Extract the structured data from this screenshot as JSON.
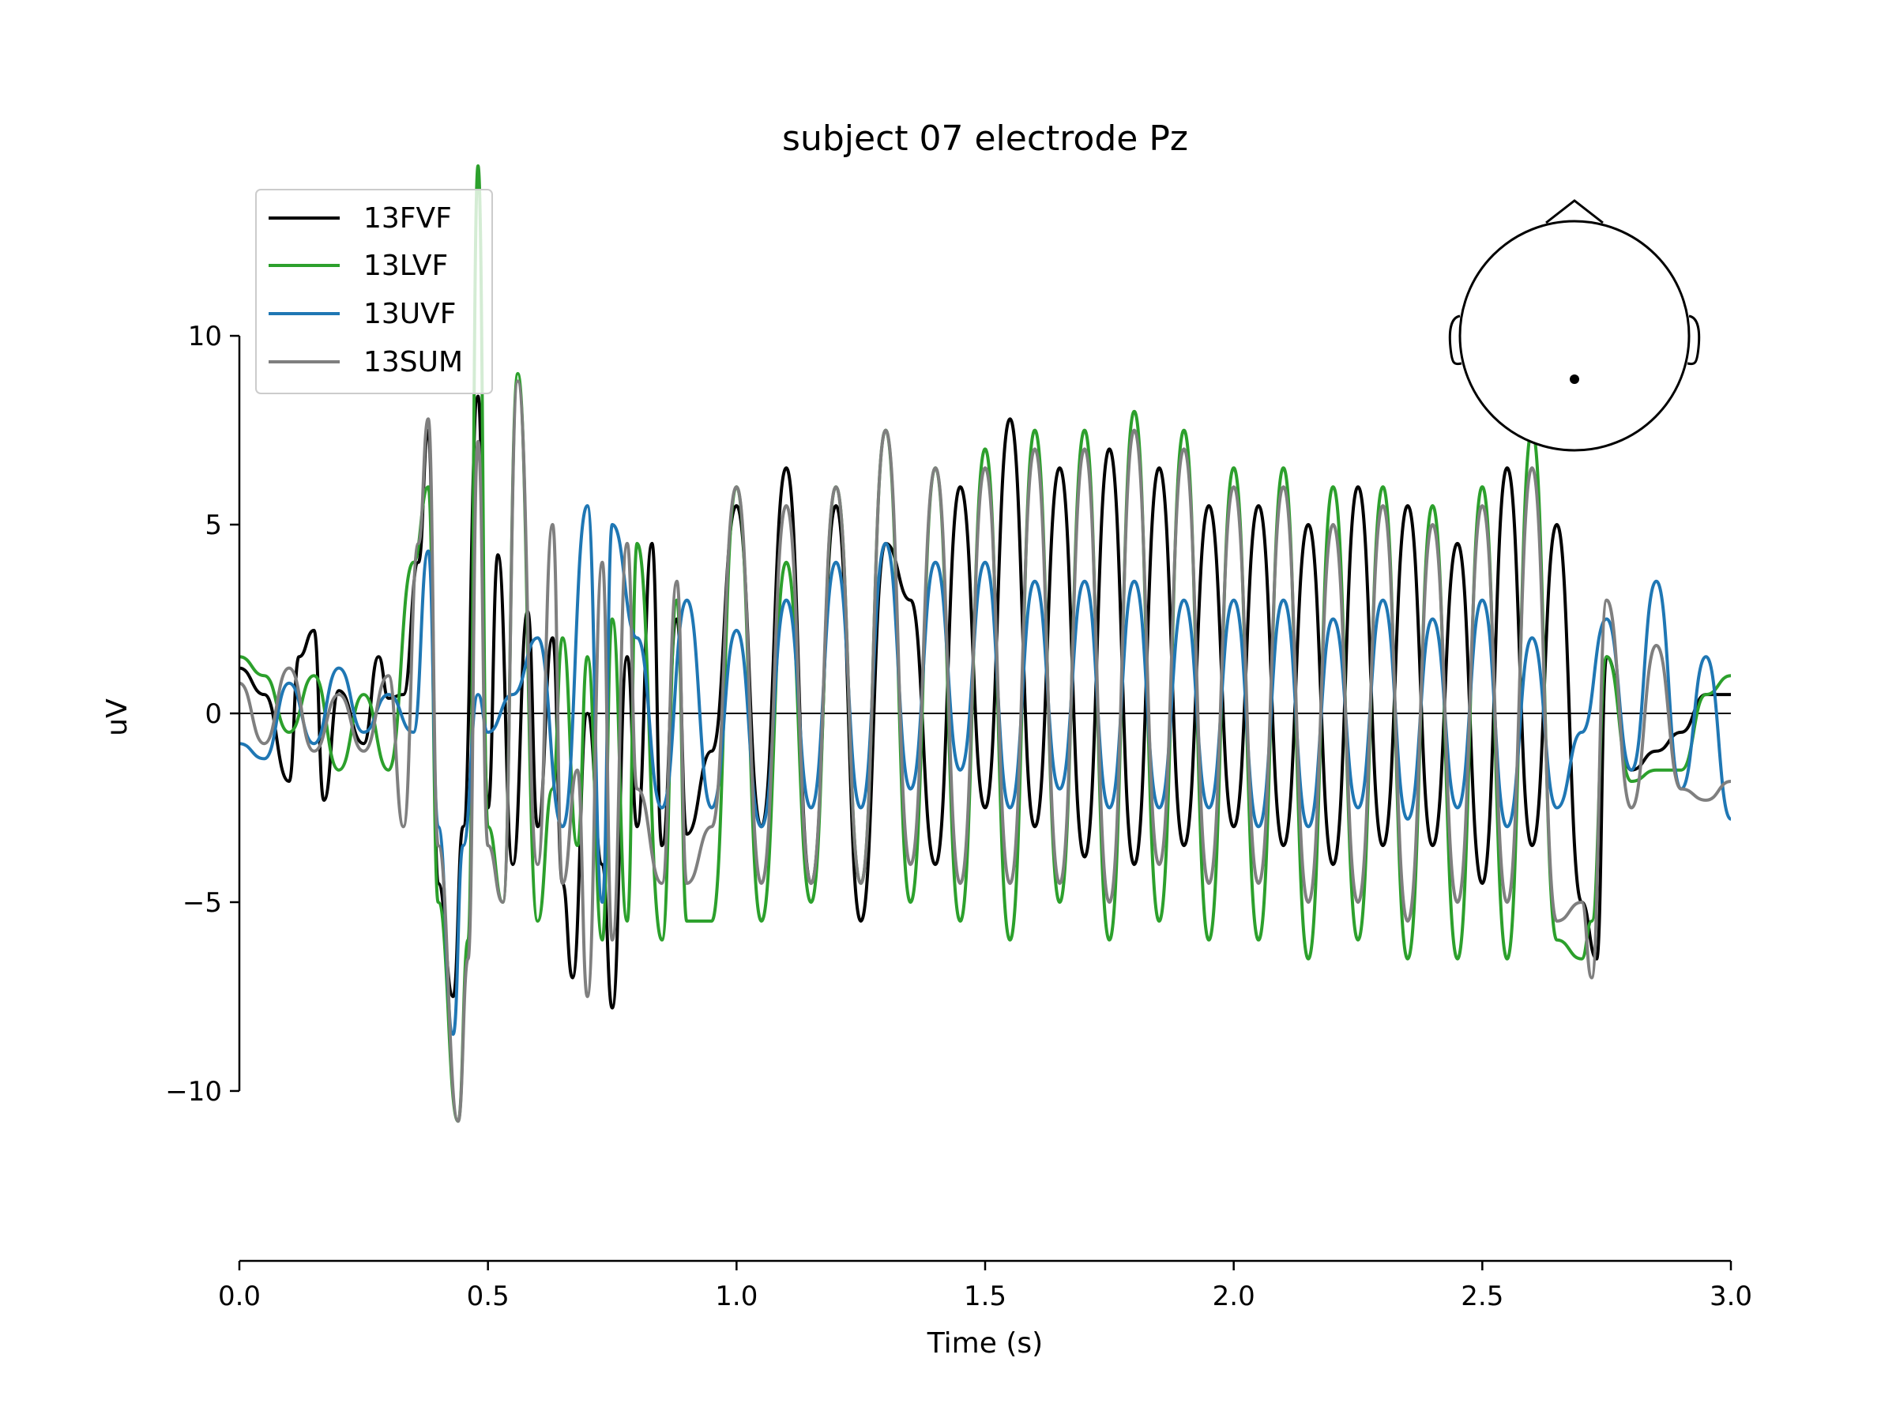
{
  "chart_data": {
    "type": "line",
    "title": "subject 07 electrode Pz",
    "xlabel": "Time (s)",
    "ylabel": "uV",
    "xlim": [
      0,
      3.0
    ],
    "ylim": [
      -14.5,
      14.5
    ],
    "x_ticks": [
      0.0,
      0.5,
      1.0,
      1.5,
      2.0,
      2.5,
      3.0
    ],
    "x_tick_labels": [
      "0.0",
      "0.5",
      "1.0",
      "1.5",
      "2.0",
      "2.5",
      "3.0"
    ],
    "y_ticks": [
      10,
      5,
      0,
      -5,
      -10
    ],
    "y_tick_labels": [
      "10",
      "5",
      "0",
      "−5",
      "−10"
    ],
    "grid": false,
    "zero_line": true,
    "legend_position": "top-left",
    "sensor_inset": {
      "position": "top-right",
      "electrode": "Pz"
    },
    "series": [
      {
        "name": "13FVF",
        "color": "#000000",
        "x": [
          0.0,
          0.05,
          0.1,
          0.12,
          0.15,
          0.17,
          0.2,
          0.25,
          0.28,
          0.3,
          0.33,
          0.36,
          0.38,
          0.4,
          0.43,
          0.45,
          0.48,
          0.5,
          0.52,
          0.55,
          0.58,
          0.6,
          0.63,
          0.65,
          0.67,
          0.7,
          0.73,
          0.75,
          0.78,
          0.8,
          0.83,
          0.85,
          0.88,
          0.9,
          0.95,
          1.0,
          1.05,
          1.1,
          1.15,
          1.2,
          1.25,
          1.3,
          1.35,
          1.4,
          1.45,
          1.5,
          1.55,
          1.6,
          1.65,
          1.7,
          1.75,
          1.8,
          1.85,
          1.9,
          1.95,
          2.0,
          2.05,
          2.1,
          2.15,
          2.2,
          2.25,
          2.3,
          2.35,
          2.4,
          2.45,
          2.5,
          2.55,
          2.6,
          2.65,
          2.7,
          2.73,
          2.75,
          2.8,
          2.85,
          2.9,
          2.95,
          3.0
        ],
        "values": [
          1.2,
          0.5,
          -1.8,
          1.5,
          2.2,
          -2.3,
          0.6,
          -0.8,
          1.5,
          0.4,
          0.5,
          4.0,
          7.5,
          -4.5,
          -7.5,
          -3.0,
          8.4,
          -2.5,
          4.2,
          -4.0,
          2.7,
          -3.0,
          2.0,
          -4.5,
          -7.0,
          0.0,
          -4.0,
          -7.8,
          1.5,
          -3.0,
          4.5,
          -3.5,
          2.5,
          -3.2,
          -1.0,
          5.5,
          -3.0,
          6.5,
          -4.5,
          5.5,
          -5.5,
          4.5,
          3.0,
          -4.0,
          6.0,
          -2.5,
          7.8,
          -3.0,
          6.5,
          -3.8,
          7.0,
          -4.0,
          6.5,
          -3.5,
          5.5,
          -3.0,
          5.5,
          -3.5,
          5.0,
          -4.0,
          6.0,
          -3.5,
          5.5,
          -3.5,
          4.5,
          -4.5,
          6.5,
          -3.5,
          5.0,
          -5.0,
          -6.5,
          1.5,
          -1.5,
          -1.0,
          -0.5,
          0.5,
          0.5
        ]
      },
      {
        "name": "13LVF",
        "color": "#2ca02c",
        "x": [
          0.0,
          0.05,
          0.1,
          0.15,
          0.2,
          0.25,
          0.3,
          0.35,
          0.38,
          0.4,
          0.44,
          0.46,
          0.48,
          0.5,
          0.53,
          0.56,
          0.6,
          0.63,
          0.65,
          0.68,
          0.7,
          0.73,
          0.75,
          0.78,
          0.8,
          0.85,
          0.88,
          0.9,
          0.95,
          1.0,
          1.05,
          1.1,
          1.15,
          1.2,
          1.25,
          1.3,
          1.35,
          1.4,
          1.45,
          1.5,
          1.55,
          1.6,
          1.65,
          1.7,
          1.75,
          1.8,
          1.85,
          1.9,
          1.95,
          2.0,
          2.05,
          2.1,
          2.15,
          2.2,
          2.25,
          2.3,
          2.35,
          2.4,
          2.45,
          2.5,
          2.55,
          2.6,
          2.65,
          2.7,
          2.72,
          2.75,
          2.8,
          2.85,
          2.9,
          2.95,
          3.0
        ],
        "values": [
          1.5,
          1.0,
          -0.5,
          1.0,
          -1.5,
          0.5,
          -1.5,
          4.0,
          6.0,
          -5.0,
          -10.8,
          -6.0,
          14.5,
          -3.0,
          -5.0,
          9.0,
          -5.5,
          -2.0,
          2.0,
          -3.5,
          1.5,
          -6.0,
          2.5,
          -5.5,
          4.5,
          -6.0,
          3.0,
          -5.5,
          -5.5,
          6.0,
          -5.5,
          4.0,
          -5.0,
          6.0,
          -4.5,
          7.5,
          -5.0,
          6.5,
          -5.5,
          7.0,
          -6.0,
          7.5,
          -5.0,
          7.5,
          -6.0,
          8.0,
          -5.5,
          7.5,
          -6.0,
          6.5,
          -6.0,
          6.5,
          -6.5,
          6.0,
          -6.0,
          6.0,
          -6.5,
          5.5,
          -6.5,
          6.0,
          -6.5,
          7.5,
          -6.0,
          -6.5,
          -5.5,
          1.5,
          -1.8,
          -1.5,
          -1.5,
          0.5,
          1.0
        ]
      },
      {
        "name": "13UVF",
        "color": "#1f77b4",
        "x": [
          0.0,
          0.05,
          0.1,
          0.15,
          0.2,
          0.25,
          0.3,
          0.35,
          0.38,
          0.4,
          0.43,
          0.45,
          0.48,
          0.5,
          0.55,
          0.6,
          0.65,
          0.7,
          0.73,
          0.75,
          0.8,
          0.85,
          0.9,
          0.95,
          1.0,
          1.05,
          1.1,
          1.15,
          1.2,
          1.25,
          1.3,
          1.35,
          1.4,
          1.45,
          1.5,
          1.55,
          1.6,
          1.65,
          1.7,
          1.75,
          1.8,
          1.85,
          1.9,
          1.95,
          2.0,
          2.05,
          2.1,
          2.15,
          2.2,
          2.25,
          2.3,
          2.35,
          2.4,
          2.45,
          2.5,
          2.55,
          2.6,
          2.65,
          2.7,
          2.75,
          2.8,
          2.85,
          2.9,
          2.95,
          3.0
        ],
        "values": [
          -0.8,
          -1.2,
          0.8,
          -0.8,
          1.2,
          -0.5,
          0.5,
          -0.5,
          4.3,
          -3.0,
          -8.5,
          -3.5,
          0.5,
          -0.5,
          0.5,
          2.0,
          -3.0,
          5.5,
          -5.0,
          5.0,
          2.0,
          -2.5,
          3.0,
          -2.5,
          2.2,
          -3.0,
          3.0,
          -2.5,
          4.0,
          -2.5,
          4.5,
          -2.0,
          4.0,
          -1.5,
          4.0,
          -2.5,
          3.5,
          -2.0,
          3.5,
          -2.5,
          3.5,
          -2.5,
          3.0,
          -2.5,
          3.0,
          -3.0,
          3.0,
          -3.0,
          2.5,
          -2.5,
          3.0,
          -2.8,
          2.5,
          -2.5,
          3.0,
          -3.0,
          2.0,
          -2.5,
          -0.5,
          2.5,
          -1.5,
          3.5,
          -2.0,
          1.5,
          -2.8
        ]
      },
      {
        "name": "13SUM",
        "color": "#7f7f7f",
        "x": [
          0.0,
          0.05,
          0.1,
          0.15,
          0.2,
          0.25,
          0.3,
          0.33,
          0.36,
          0.38,
          0.4,
          0.44,
          0.46,
          0.48,
          0.5,
          0.53,
          0.56,
          0.6,
          0.63,
          0.65,
          0.68,
          0.7,
          0.73,
          0.75,
          0.78,
          0.8,
          0.85,
          0.88,
          0.9,
          0.95,
          1.0,
          1.05,
          1.1,
          1.15,
          1.2,
          1.25,
          1.3,
          1.35,
          1.4,
          1.45,
          1.5,
          1.55,
          1.6,
          1.65,
          1.7,
          1.75,
          1.8,
          1.85,
          1.9,
          1.95,
          2.0,
          2.05,
          2.1,
          2.15,
          2.2,
          2.25,
          2.3,
          2.35,
          2.4,
          2.45,
          2.5,
          2.55,
          2.6,
          2.65,
          2.7,
          2.72,
          2.75,
          2.8,
          2.85,
          2.9,
          2.95,
          3.0
        ],
        "values": [
          0.8,
          -0.8,
          1.2,
          -1.0,
          0.5,
          -1.0,
          1.0,
          -3.0,
          4.5,
          7.8,
          -3.5,
          -10.8,
          -6.5,
          7.2,
          -3.5,
          -5.0,
          8.8,
          -4.0,
          5.0,
          -4.5,
          -1.5,
          -7.5,
          4.0,
          -6.0,
          4.5,
          -2.0,
          -4.5,
          3.5,
          -4.5,
          -3.0,
          6.0,
          -4.5,
          5.5,
          -4.5,
          6.0,
          -4.5,
          7.5,
          -4.0,
          6.5,
          -4.5,
          6.5,
          -4.5,
          7.0,
          -4.5,
          7.0,
          -5.0,
          7.5,
          -4.0,
          7.0,
          -4.5,
          6.0,
          -4.5,
          6.0,
          -5.0,
          5.0,
          -5.0,
          5.5,
          -5.5,
          5.0,
          -5.0,
          5.5,
          -5.0,
          6.5,
          -5.5,
          -5.0,
          -7.0,
          3.0,
          -2.5,
          1.8,
          -2.0,
          -2.3,
          -1.8
        ]
      }
    ]
  }
}
